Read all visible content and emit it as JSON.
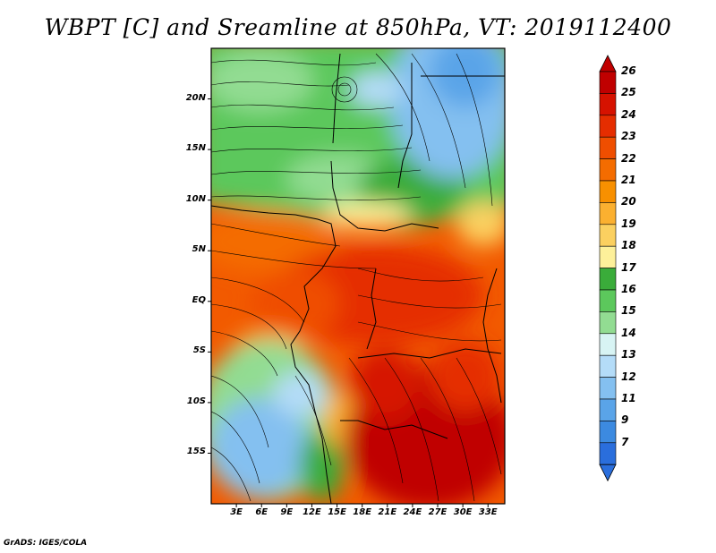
{
  "title": "WBPT [C] and Sreamline at 850hPa, VT: 2019112400",
  "credit": "GrADS: IGES/COLA",
  "map": {
    "lat_labels": [
      "20N",
      "15N",
      "10N",
      "5N",
      "EQ",
      "5S",
      "10S",
      "15S"
    ],
    "lat_values": [
      20,
      15,
      10,
      5,
      0,
      -5,
      -10,
      -15
    ],
    "lon_labels": [
      "3E",
      "6E",
      "9E",
      "12E",
      "15E",
      "18E",
      "21E",
      "24E",
      "27E",
      "30E",
      "33E"
    ],
    "lon_values": [
      3,
      6,
      9,
      12,
      15,
      18,
      21,
      24,
      27,
      30,
      33
    ],
    "lat_range": [
      -20,
      25
    ],
    "lon_range": [
      0,
      35
    ]
  },
  "colorbar": {
    "labels": [
      "26",
      "25",
      "24",
      "23",
      "22",
      "21",
      "20",
      "19",
      "18",
      "17",
      "16",
      "15",
      "14",
      "13",
      "12",
      "11",
      "9",
      "7"
    ],
    "colors": [
      "#c00000",
      "#d61200",
      "#e52d00",
      "#ef4e00",
      "#f46c00",
      "#f89000",
      "#fbb030",
      "#fbd060",
      "#fdf09a",
      "#3aac3a",
      "#5cc85c",
      "#92dc92",
      "#d8f4f4",
      "#b4dcf8",
      "#84c0f0",
      "#5aa4e8",
      "#3c8ae0",
      "#2a6edc"
    ]
  }
}
